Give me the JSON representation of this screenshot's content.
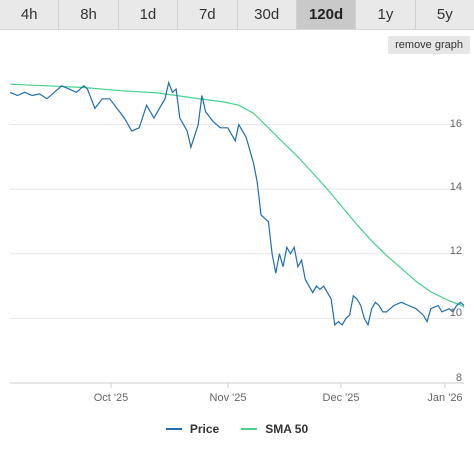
{
  "tabs": [
    {
      "label": "4h",
      "active": false
    },
    {
      "label": "8h",
      "active": false
    },
    {
      "label": "1d",
      "active": false
    },
    {
      "label": "7d",
      "active": false
    },
    {
      "label": "30d",
      "active": false
    },
    {
      "label": "120d",
      "active": true
    },
    {
      "label": "1y",
      "active": false
    },
    {
      "label": "5y",
      "active": false
    }
  ],
  "remove_graph_label": "remove graph",
  "legend": {
    "price_label": "Price",
    "sma_label": "SMA 50"
  },
  "colors": {
    "price": "#1f6fb0",
    "sma": "#46d18c",
    "grid": "#e6e6e6",
    "axis": "#cccccc"
  },
  "chart_data": {
    "type": "line",
    "x_ticks": [
      "Oct '25",
      "Nov '25",
      "Dec '25",
      "Jan '26"
    ],
    "y_ticks": [
      8,
      10,
      12,
      14,
      16
    ],
    "ylim": [
      8,
      18
    ],
    "grid": true,
    "legend_position": "bottom",
    "series": [
      {
        "name": "Price",
        "points": [
          [
            0,
            17.0
          ],
          [
            2,
            16.9
          ],
          [
            4,
            17.0
          ],
          [
            6,
            16.9
          ],
          [
            8,
            16.95
          ],
          [
            10,
            16.8
          ],
          [
            12,
            17.0
          ],
          [
            14,
            17.2
          ],
          [
            16,
            17.1
          ],
          [
            18,
            17.0
          ],
          [
            20,
            17.2
          ],
          [
            21,
            17.1
          ],
          [
            23,
            16.5
          ],
          [
            25,
            16.8
          ],
          [
            27,
            16.8
          ],
          [
            29,
            16.5
          ],
          [
            31,
            16.2
          ],
          [
            33,
            15.8
          ],
          [
            35,
            15.9
          ],
          [
            37,
            16.6
          ],
          [
            39,
            16.2
          ],
          [
            41,
            16.6
          ],
          [
            42,
            16.8
          ],
          [
            43,
            17.3
          ],
          [
            44,
            17.0
          ],
          [
            45,
            17.1
          ],
          [
            46,
            16.2
          ],
          [
            48,
            15.8
          ],
          [
            49,
            15.3
          ],
          [
            51,
            16.0
          ],
          [
            52,
            16.9
          ],
          [
            53,
            16.4
          ],
          [
            55,
            16.1
          ],
          [
            57,
            15.9
          ],
          [
            59,
            15.9
          ],
          [
            61,
            15.5
          ],
          [
            62,
            16.0
          ],
          [
            64,
            15.6
          ],
          [
            66,
            14.8
          ],
          [
            67,
            14.2
          ],
          [
            68,
            13.2
          ],
          [
            69,
            13.1
          ],
          [
            70,
            13.0
          ],
          [
            71,
            12.0
          ],
          [
            72,
            11.4
          ],
          [
            73,
            12.0
          ],
          [
            74,
            11.6
          ],
          [
            75,
            12.2
          ],
          [
            76,
            12.0
          ],
          [
            77,
            12.2
          ],
          [
            78,
            11.6
          ],
          [
            79,
            11.8
          ],
          [
            80,
            11.2
          ],
          [
            82,
            10.8
          ],
          [
            83,
            11.0
          ],
          [
            84,
            10.9
          ],
          [
            85,
            11.0
          ],
          [
            86,
            10.8
          ],
          [
            87,
            10.6
          ],
          [
            88,
            9.8
          ],
          [
            89,
            9.9
          ],
          [
            90,
            9.8
          ],
          [
            91,
            10.0
          ],
          [
            92,
            10.1
          ],
          [
            93,
            10.7
          ],
          [
            94,
            10.6
          ],
          [
            95,
            10.4
          ],
          [
            96,
            10.0
          ],
          [
            97,
            9.8
          ],
          [
            98,
            10.3
          ],
          [
            99,
            10.5
          ],
          [
            100,
            10.4
          ],
          [
            101,
            10.2
          ],
          [
            102,
            10.2
          ],
          [
            104,
            10.4
          ],
          [
            106,
            10.5
          ],
          [
            108,
            10.4
          ],
          [
            110,
            10.3
          ],
          [
            112,
            10.1
          ],
          [
            113,
            9.9
          ],
          [
            114,
            10.3
          ],
          [
            116,
            10.4
          ],
          [
            117,
            10.2
          ],
          [
            119,
            10.3
          ],
          [
            120,
            10.2
          ],
          [
            121,
            10.4
          ],
          [
            122,
            10.5
          ],
          [
            123,
            10.4
          ]
        ]
      },
      {
        "name": "SMA 50",
        "points": [
          [
            0,
            17.25
          ],
          [
            10,
            17.2
          ],
          [
            20,
            17.15
          ],
          [
            30,
            17.05
          ],
          [
            40,
            16.98
          ],
          [
            50,
            16.82
          ],
          [
            58,
            16.7
          ],
          [
            62,
            16.6
          ],
          [
            66,
            16.35
          ],
          [
            70,
            15.9
          ],
          [
            74,
            15.45
          ],
          [
            78,
            15.0
          ],
          [
            82,
            14.5
          ],
          [
            86,
            14.0
          ],
          [
            90,
            13.45
          ],
          [
            94,
            12.9
          ],
          [
            98,
            12.4
          ],
          [
            102,
            11.95
          ],
          [
            106,
            11.55
          ],
          [
            110,
            11.15
          ],
          [
            114,
            10.82
          ],
          [
            118,
            10.6
          ],
          [
            120,
            10.5
          ],
          [
            122,
            10.42
          ],
          [
            123,
            10.35
          ]
        ]
      }
    ]
  }
}
